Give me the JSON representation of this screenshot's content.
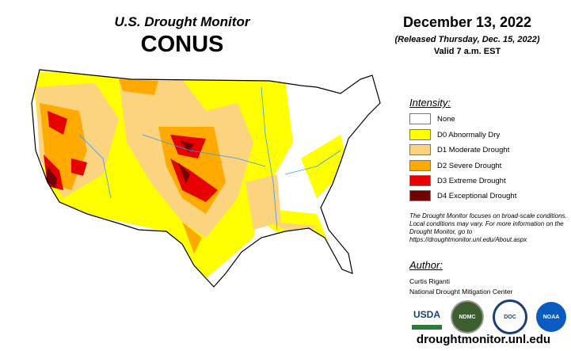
{
  "header": {
    "title": "U.S. Drought Monitor",
    "region": "CONUS"
  },
  "date": {
    "map_date": "December 13, 2022",
    "released": "(Released Thursday, Dec. 15, 2022)",
    "valid": "Valid 7 a.m. EST"
  },
  "legend": {
    "title": "Intensity:",
    "items": [
      {
        "label": "None",
        "color": "#ffffff"
      },
      {
        "label": "D0 Abnormally Dry",
        "color": "#ffff00"
      },
      {
        "label": "D1 Moderate Drought",
        "color": "#fcd37f"
      },
      {
        "label": "D2 Severe Drought",
        "color": "#ffaa00"
      },
      {
        "label": "D3 Extreme Drought",
        "color": "#e60000"
      },
      {
        "label": "D4 Exceptional Drought",
        "color": "#730000"
      }
    ]
  },
  "note": "The Drought Monitor focuses on broad-scale conditions. Local conditions may vary. For more information on the Drought Monitor, go to https://droughtmonitor.unl.edu/About.aspx",
  "author": {
    "title": "Author:",
    "name": "Curtis Riganti",
    "org": "National Drought Mitigation Center"
  },
  "logos": [
    "USDA",
    "NDMC",
    "DOC",
    "NOAA"
  ],
  "footer_url": "droughtmonitor.unl.edu"
}
